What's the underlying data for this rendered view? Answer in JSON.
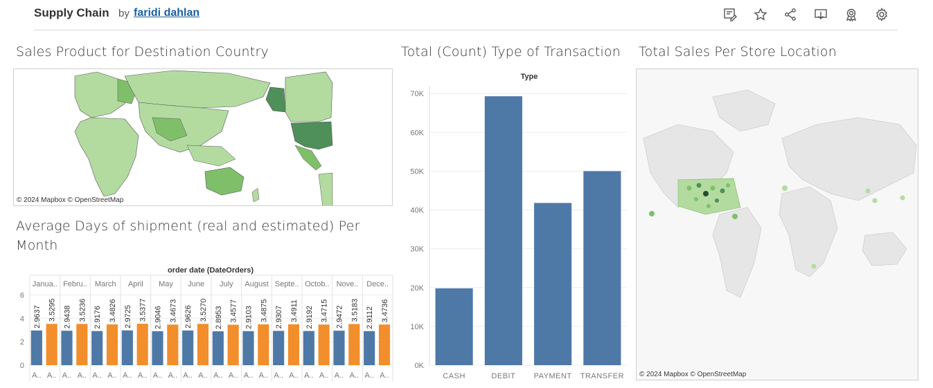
{
  "header": {
    "title": "Supply Chain",
    "by": "by",
    "author": "faridi dahlan",
    "toolbar_icons": [
      "edit-icon",
      "star-icon",
      "share-icon",
      "download-icon",
      "award-icon",
      "settings-icon"
    ]
  },
  "panels": {
    "sales_product_title": "Sales Product for Destination Country",
    "sales_product_attribution": "© 2024 Mapbox  © OpenStreetMap",
    "transaction_title": "Total (Count) Type of Transaction",
    "store_location_title": "Total Sales Per Store Location",
    "store_location_attribution": "© 2024 Mapbox  © OpenStreetMap",
    "shipment_title_line1": "Average Days of shipment (real and estimated) Per",
    "shipment_title_line2": "Month"
  },
  "colors": {
    "bar_blue": "#4e79a7",
    "bar_orange": "#f28e2b",
    "map_green_light": "#b3dba0",
    "map_green_mid": "#7fbf6a",
    "map_green_dark": "#4f8f5a",
    "land_gray": "#e6e6e6"
  },
  "chart_data": [
    {
      "type": "bar",
      "title": "Type",
      "categories": [
        "CASH",
        "DEBIT",
        "PAYMENT",
        "TRANSFER"
      ],
      "values": [
        19800,
        69300,
        41800,
        50000
      ],
      "ylim": [
        0,
        72000
      ],
      "yticks": [
        0,
        10000,
        20000,
        30000,
        40000,
        50000,
        60000,
        70000
      ],
      "yticklabels": [
        "0K",
        "10K",
        "20K",
        "30K",
        "40K",
        "50K",
        "60K",
        "70K"
      ],
      "grid": true
    },
    {
      "type": "bar",
      "title": "order date (DateOrders)",
      "categories": [
        "Janua..",
        "Febru..",
        "March",
        "April",
        "May",
        "June",
        "July",
        "August",
        "Septe..",
        "Octob..",
        "Nove..",
        "Dece.."
      ],
      "series": [
        {
          "name": "A..",
          "values": [
            2.9637,
            2.9438,
            2.9176,
            2.9725,
            2.9046,
            2.9626,
            2.8953,
            2.9103,
            2.9307,
            2.9192,
            2.9472,
            2.9112
          ]
        },
        {
          "name": "A..",
          "values": [
            3.5295,
            3.5236,
            3.4826,
            3.5377,
            3.4673,
            3.527,
            3.4577,
            3.4875,
            3.4911,
            3.4715,
            3.5183,
            3.4736
          ]
        }
      ],
      "labels": [
        [
          "2.9637",
          "3.5295"
        ],
        [
          "2.9438",
          "3.5236"
        ],
        [
          "2.9176",
          "3.4826"
        ],
        [
          "2.9725",
          "3.5377"
        ],
        [
          "2.9046",
          "3.4673"
        ],
        [
          "2.9626",
          "3.5270"
        ],
        [
          "2.8953",
          "3.4577"
        ],
        [
          "2.9103",
          "3.4875"
        ],
        [
          "2.9307",
          "3.4911"
        ],
        [
          "2.9192",
          "3.4715"
        ],
        [
          "2.9472",
          "3.5183"
        ],
        [
          "2.9112",
          "3.4736"
        ]
      ],
      "ylim": [
        0,
        6.5
      ],
      "yticks": [
        0,
        2,
        4,
        6
      ],
      "yticklabels": [
        "0",
        "2",
        "4",
        "6"
      ],
      "grid": true
    }
  ]
}
